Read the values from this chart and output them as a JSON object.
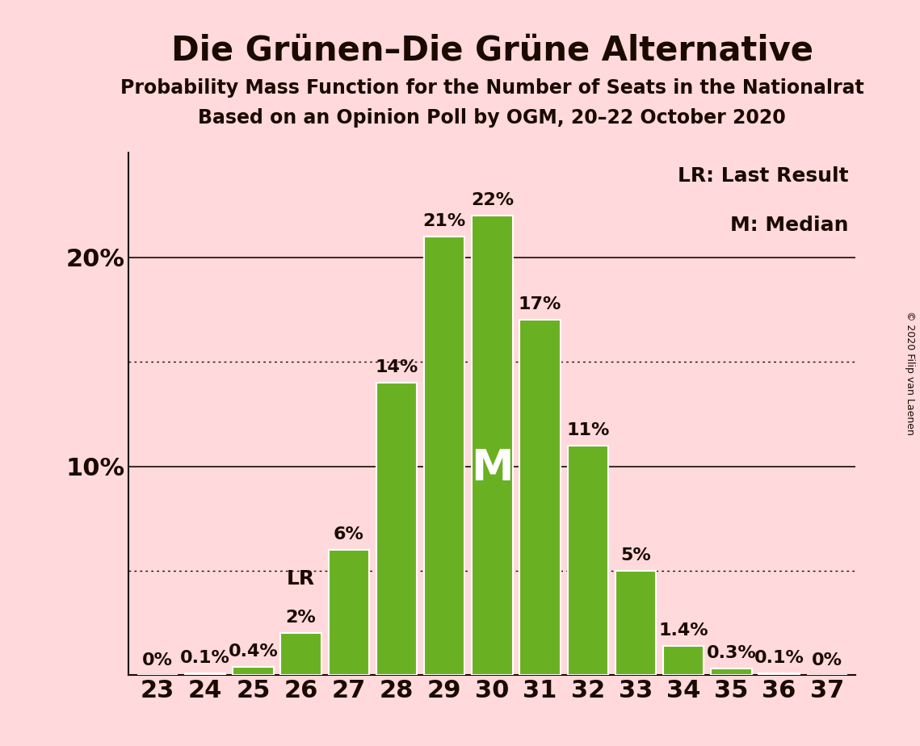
{
  "title": "Die Grünen–Die Grüne Alternative",
  "subtitle1": "Probability Mass Function for the Number of Seats in the Nationalrat",
  "subtitle2": "Based on an Opinion Poll by OGM, 20–22 October 2020",
  "copyright": "© 2020 Filip van Laenen",
  "seats": [
    23,
    24,
    25,
    26,
    27,
    28,
    29,
    30,
    31,
    32,
    33,
    34,
    35,
    36,
    37
  ],
  "probabilities": [
    0.0,
    0.1,
    0.4,
    2.0,
    6.0,
    14.0,
    21.0,
    22.0,
    17.0,
    11.0,
    5.0,
    1.4,
    0.3,
    0.1,
    0.0
  ],
  "bar_color": "#6ab023",
  "bar_edge_color": "white",
  "background_color": "#ffd9db",
  "text_color": "#1a0a00",
  "legend_lr": "LR: Last Result",
  "legend_m": "M: Median",
  "lr_seat": 26,
  "median_seat": 30,
  "ylim": [
    0,
    25
  ],
  "solid_grid_lines": [
    10,
    20
  ],
  "dotted_grid_lines": [
    5,
    15
  ],
  "bar_labels": [
    "0%",
    "0.1%",
    "0.4%",
    "2%",
    "6%",
    "14%",
    "21%",
    "22%",
    "17%",
    "11%",
    "5%",
    "1.4%",
    "0.3%",
    "0.1%",
    "0%"
  ],
  "title_fontsize": 30,
  "subtitle_fontsize": 17,
  "axis_label_fontsize": 22,
  "bar_label_fontsize": 16,
  "legend_fontsize": 18,
  "M_fontsize": 38,
  "lr_label_fontsize": 18
}
